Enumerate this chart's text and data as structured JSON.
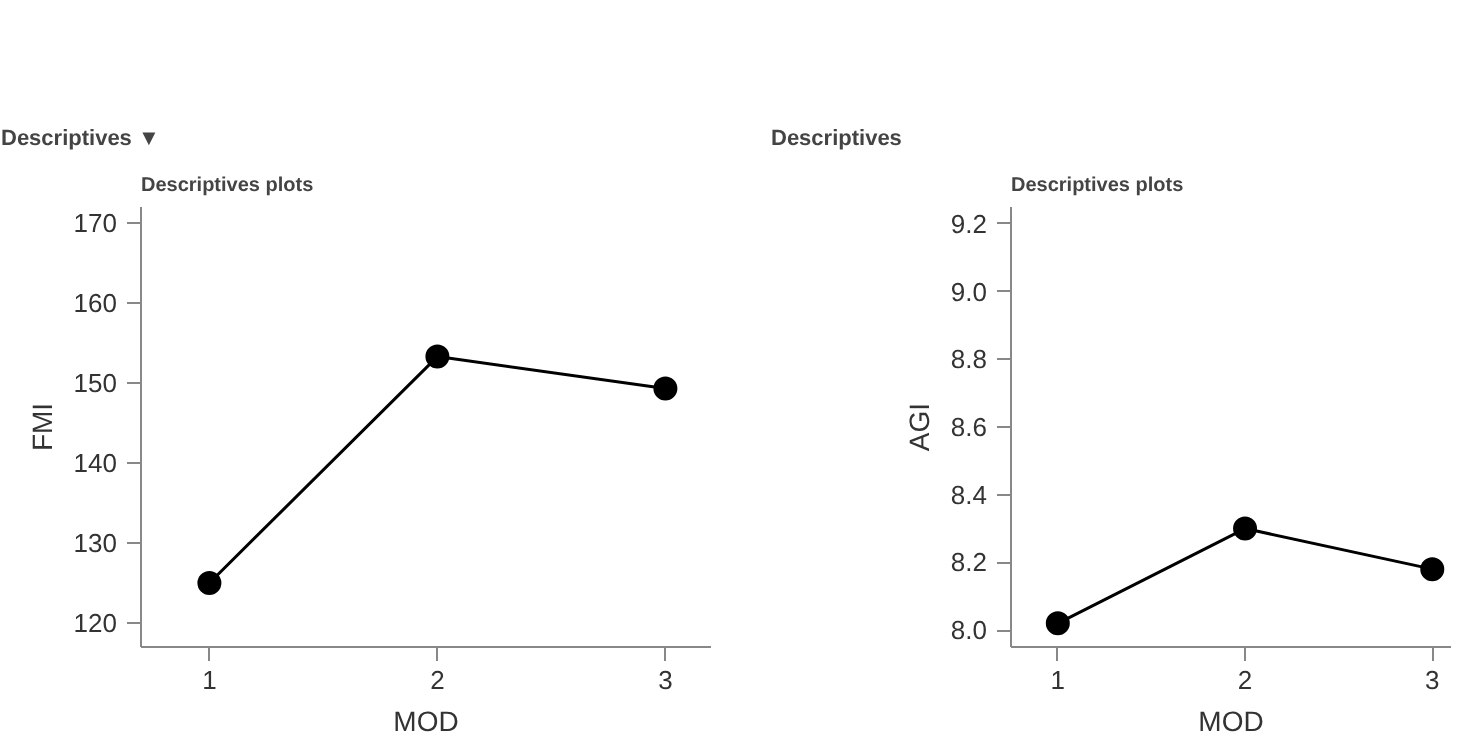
{
  "chart_data": [
    {
      "type": "line",
      "title": "Descriptives ▼",
      "subtitle": "Descriptives plots",
      "xlabel": "MOD",
      "ylabel": "FMI",
      "x": [
        1,
        2,
        3
      ],
      "series": [
        {
          "color": "#000000",
          "values": [
            125,
            153.3,
            149.3
          ]
        }
      ],
      "xlim": [
        0.7,
        3.2
      ],
      "ylim": [
        117,
        172
      ],
      "xticks": [
        1,
        2,
        3
      ],
      "yticks": [
        120,
        130,
        140,
        150,
        160,
        170
      ],
      "marker": "circle",
      "line_style": "solid",
      "grid": false
    },
    {
      "type": "line",
      "title": "Descriptives",
      "subtitle": "Descriptives plots",
      "xlabel": "MOD",
      "ylabel": "AGI",
      "x": [
        1,
        2,
        3
      ],
      "series": [
        {
          "color": "#000000",
          "values": [
            8.02,
            8.3,
            8.18
          ]
        }
      ],
      "xlim": [
        0.75,
        3.1
      ],
      "ylim": [
        7.95,
        9.25
      ],
      "xticks": [
        1,
        2,
        3
      ],
      "yticks": [
        {
          "value": 8.0,
          "label": "8.0"
        },
        {
          "value": 8.2,
          "label": "8.2"
        },
        {
          "value": 8.4,
          "label": "8.4"
        },
        {
          "value": 8.6,
          "label": "8.6"
        },
        {
          "value": 8.8,
          "label": "8.8"
        },
        {
          "value": 9.0,
          "label": "9.0"
        },
        {
          "value": 9.2,
          "label": "9.2"
        }
      ],
      "marker": "circle",
      "line_style": "solid",
      "grid": false
    }
  ]
}
